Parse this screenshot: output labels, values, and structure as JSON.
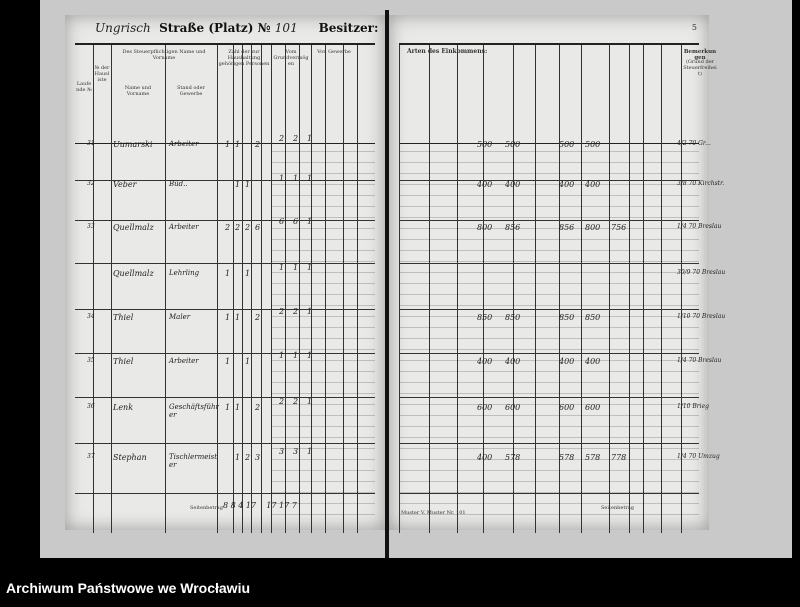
{
  "left_page": {
    "street_handwritten": "Ungrisch",
    "street_label": "Straße (Platz) №",
    "house_number": "101",
    "owner_label": "Besitzer:",
    "columns": [
      "Laufende №",
      "№ der Hausliste",
      "Des Steuerpflichtigen Name und Vorname",
      "Stand oder Gewerbe",
      "Zahl der zur Haushaltung gehörigen Personen",
      "Vom Grundvermögen",
      "Von Gewerbe"
    ],
    "sub_columns": [
      "Name und Vorname",
      "Stand oder Gewerbe"
    ],
    "footer": "Seitenbetrag",
    "footer_values": [
      "8",
      "8",
      "4",
      "17",
      "17",
      "17",
      "7"
    ]
  },
  "right_page": {
    "page_number": "5",
    "header_main": "Arten des Einkommens:",
    "header_remarks": "Bemerkungen",
    "header_remarks_sub": "(Grund der Steuerfreiheit)",
    "form_note": "Muster V. Muster Nr. 101",
    "footer": "Seitenbetrag"
  },
  "entries": [
    {
      "no": "31",
      "name": "Uumarski",
      "occupation": "Arbeiter",
      "persons": [
        "1",
        "1",
        "",
        "2"
      ],
      "vals": [
        "2",
        "2",
        "1"
      ],
      "income": [
        "500",
        "500",
        "500",
        "500"
      ],
      "remark": "4/2 70 Gr..."
    },
    {
      "no": "32",
      "name": "Veber",
      "occupation": "Büd..",
      "persons": [
        "",
        "1",
        "1",
        ""
      ],
      "vals": [
        "1",
        "1",
        "1"
      ],
      "income": [
        "400",
        "400",
        "400",
        "400"
      ],
      "remark": "3/8 70 Kirchstr."
    },
    {
      "no": "33",
      "name": "Quellmalz",
      "occupation": "Arbeiter",
      "persons": [
        "2",
        "2",
        "2",
        "6"
      ],
      "vals": [
        "6",
        "6",
        "1"
      ],
      "income": [
        "800",
        "856",
        "856",
        "800",
        "756"
      ],
      "remark": "1/4 70 Breslau"
    },
    {
      "no": "",
      "name": "Quellmalz",
      "occupation": "Lehrling",
      "persons": [
        "1",
        "",
        "1",
        ""
      ],
      "vals": [
        "1",
        "1",
        "1"
      ],
      "income": [],
      "remark": "30/9 70 Breslau"
    },
    {
      "no": "34",
      "name": "Thiel",
      "occupation": "Maler",
      "persons": [
        "1",
        "1",
        "",
        "2"
      ],
      "vals": [
        "2",
        "2",
        "1"
      ],
      "income": [
        "850",
        "850",
        "850",
        "850"
      ],
      "remark": "1/10 70 Breslau"
    },
    {
      "no": "35",
      "name": "Thiel",
      "occupation": "Arbeiter",
      "persons": [
        "1",
        "",
        "1",
        ""
      ],
      "vals": [
        "1",
        "1",
        "1"
      ],
      "income": [
        "400",
        "400",
        "400",
        "400"
      ],
      "remark": "1/4 70 Breslau"
    },
    {
      "no": "36",
      "name": "Lenk",
      "occupation": "Geschäftsführer",
      "persons": [
        "1",
        "1",
        "",
        "2"
      ],
      "vals": [
        "2",
        "2",
        "1"
      ],
      "income": [
        "600",
        "600",
        "600",
        "600"
      ],
      "remark": "1/10 Brieg"
    },
    {
      "no": "37",
      "name": "Stephan",
      "occupation": "Tischlermeister",
      "persons": [
        "",
        "1",
        "2",
        "3"
      ],
      "vals": [
        "3",
        "3",
        "1"
      ],
      "income": [
        "400",
        "578",
        "578",
        "578",
        "778"
      ],
      "remark": "1/4 70 Umzug"
    }
  ],
  "caption": "Archiwum Państwowe we Wrocławiu"
}
